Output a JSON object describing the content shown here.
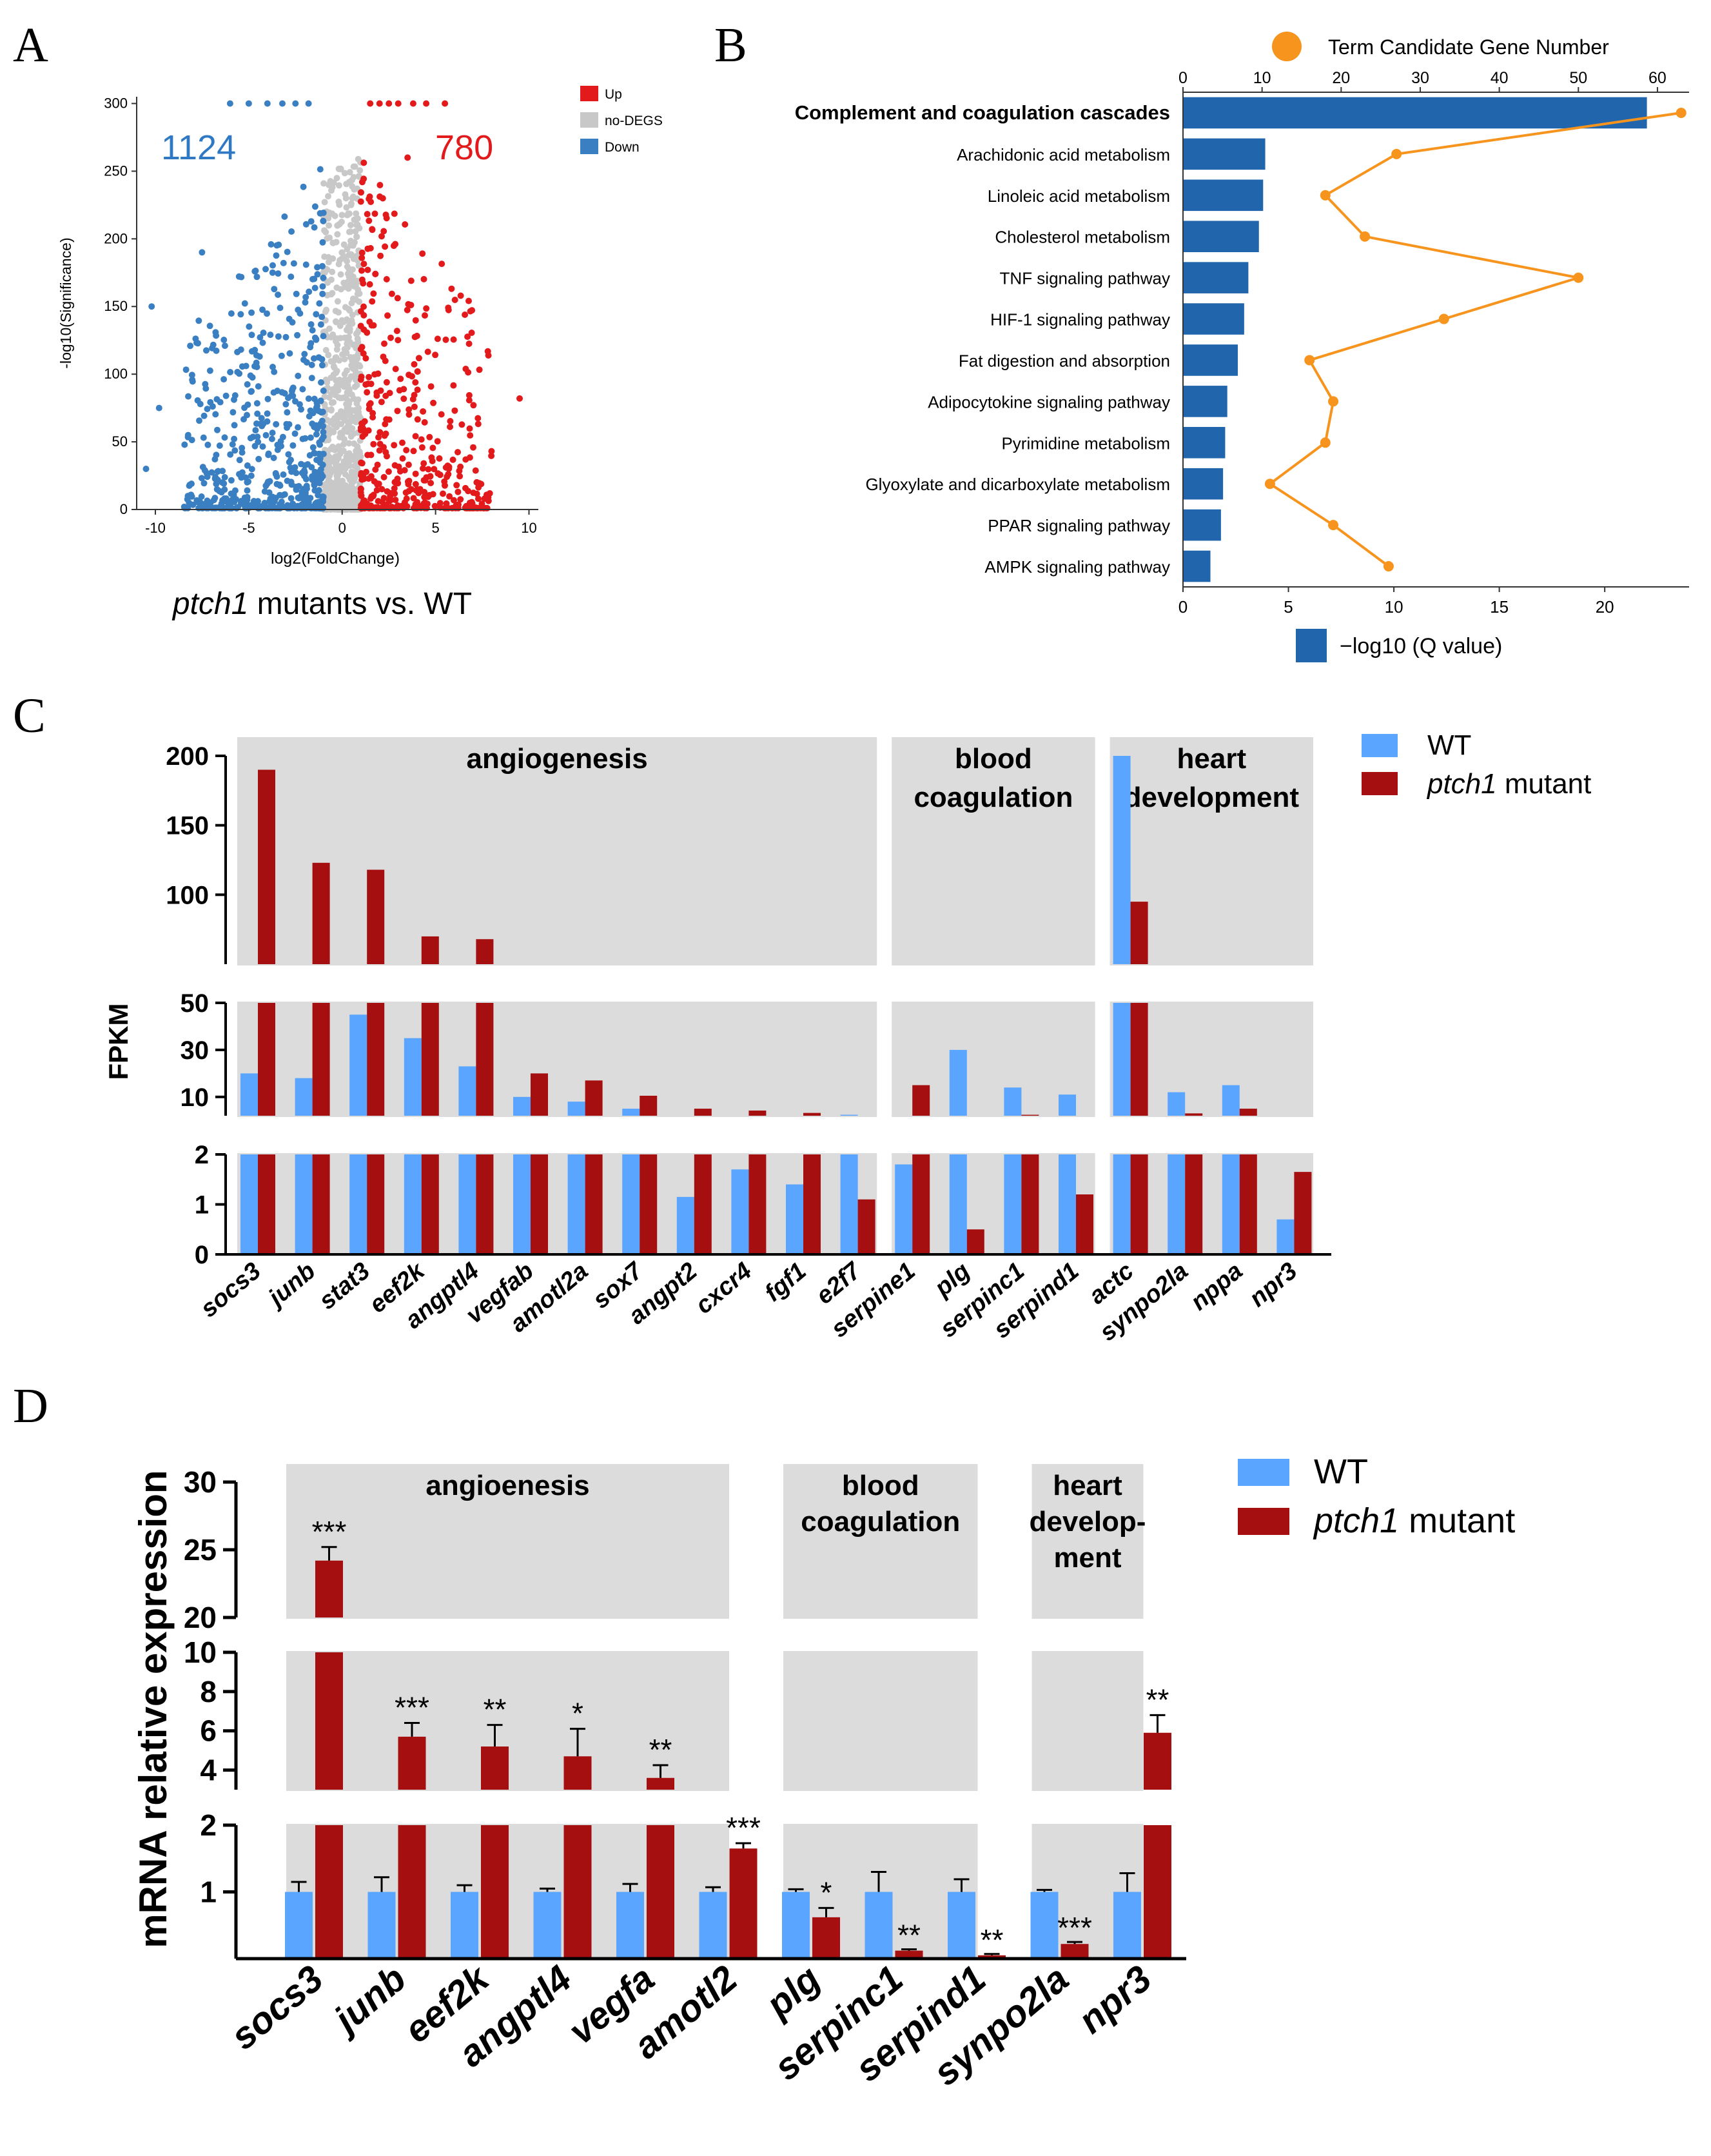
{
  "colors": {
    "up": "#e31a1c",
    "down": "#3a7fc1",
    "nodeg": "#c8c8c8",
    "kegg_bar": "#2166ac",
    "kegg_line": "#f7941d",
    "wt": "#5aa5ff",
    "mut": "#a50f0f",
    "panel_bg": "#dcdcdc"
  },
  "panel_labels": [
    "A",
    "B",
    "C",
    "D"
  ],
  "chart_data": [
    {
      "id": "A",
      "type": "scatter",
      "title": "",
      "xlabel": "log2(FoldChange)",
      "ylabel": "-log10(Significance)",
      "xlim": [
        -11,
        10.5
      ],
      "ylim": [
        0,
        305
      ],
      "xticks": [
        -10,
        -5,
        0,
        5,
        10
      ],
      "yticks": [
        0,
        50,
        100,
        150,
        200,
        250,
        300
      ],
      "legend": [
        "Up",
        "no-DEGS",
        "Down"
      ],
      "down_count": "1124",
      "up_count": "780",
      "caption_italic": "ptch1",
      "caption_rest": " mutants vs. WT",
      "points_note": "volcano plot: ~1124 down-regulated (blue, x<-1), ~780 up-regulated (red, x>1), non-DEGs grey near x=0"
    },
    {
      "id": "B",
      "type": "bar",
      "legend_top": "Term Candidate Gene Number",
      "legend_bottom": "−log10 (Q  value)",
      "categories": [
        "Complement and coagulation cascades",
        "Arachidonic acid metabolism",
        "Linoleic acid metabolism",
        "Cholesterol metabolism",
        "TNF signaling pathway",
        "HIF-1 signaling pathway",
        "Fat digestion and absorption",
        "Adipocytokine signaling pathway",
        "Pyrimidine metabolism",
        "Glyoxylate and dicarboxylate metabolism",
        "PPAR signaling pathway",
        "AMPK signaling pathway"
      ],
      "bar_values": [
        22,
        3.9,
        3.8,
        3.6,
        3.1,
        2.9,
        2.6,
        2.1,
        2.0,
        1.9,
        1.8,
        1.3
      ],
      "gene_numbers": [
        63,
        27,
        18,
        23,
        50,
        33,
        16,
        19,
        18,
        11,
        19,
        26
      ],
      "bottom_axis": {
        "ticks": [
          0,
          5,
          10,
          15,
          20
        ],
        "lim": [
          0,
          24
        ]
      },
      "top_axis": {
        "ticks": [
          0,
          10,
          20,
          30,
          40,
          50,
          60
        ],
        "lim": [
          0,
          64
        ]
      }
    },
    {
      "id": "C",
      "type": "bar",
      "ylabel": "FPKM",
      "series_names": [
        "WT",
        "ptch1"
      ],
      "series_suffix": " mutant",
      "groups": [
        {
          "label": "angiogenesis",
          "start": 0,
          "end": 11
        },
        {
          "label": "blood\ncoagulation",
          "start": 12,
          "end": 15
        },
        {
          "label": "heart\ndevelopment",
          "start": 16,
          "end": 19
        }
      ],
      "categories": [
        "socs3",
        "junb",
        "stat3",
        "eef2k",
        "angptl4",
        "vegfab",
        "amotl2a",
        "sox7",
        "angpt2",
        "cxcr4",
        "fgf1",
        "e2f7",
        "serpine1",
        "plg",
        "serpinc1",
        "serpind1",
        "actc",
        "synpo2la",
        "nppa",
        "npr3"
      ],
      "series": [
        {
          "name": "WT",
          "values": [
            20,
            18,
            45,
            35,
            23,
            10,
            8,
            5,
            1.15,
            1.7,
            1.4,
            2.4,
            1.8,
            30,
            14,
            11,
            200,
            12,
            15,
            0.7
          ]
        },
        {
          "name": "ptch1 mutant",
          "values": [
            190,
            123,
            118,
            70,
            68,
            20,
            17,
            10.5,
            5,
            4.2,
            3.2,
            1.1,
            15,
            0.5,
            2.4,
            1.2,
            95,
            3,
            5,
            1.65
          ]
        }
      ],
      "yticks": [
        0,
        1,
        2,
        10,
        30,
        50,
        100,
        150,
        200
      ]
    },
    {
      "id": "D",
      "type": "bar",
      "ylabel": "mRNA relative expression",
      "series_names": [
        "WT",
        "ptch1"
      ],
      "series_suffix": " mutant",
      "groups": [
        {
          "label": "angioenesis",
          "start": 0,
          "end": 5
        },
        {
          "label": "blood\ncoagulation",
          "start": 6,
          "end": 8
        },
        {
          "label": "heart\ndevelop-\nment",
          "start": 9,
          "end": 10
        }
      ],
      "categories": [
        "socs3",
        "junb",
        "eef2k",
        "angptl4",
        "vegfa",
        "amotl2",
        "plg",
        "serpinc1",
        "serpind1",
        "synpo2la",
        "npr3"
      ],
      "series": [
        {
          "name": "WT",
          "values": [
            1,
            1,
            1,
            1,
            1,
            1,
            1,
            1,
            1,
            1,
            1
          ],
          "errors": [
            0.15,
            0.22,
            0.1,
            0.05,
            0.12,
            0.07,
            0.04,
            0.3,
            0.19,
            0.03,
            0.28
          ]
        },
        {
          "name": "ptch1 mutant",
          "values": [
            24.2,
            5.7,
            5.2,
            4.7,
            3.6,
            1.65,
            0.62,
            0.12,
            0.05,
            0.22,
            5.9
          ],
          "errors": [
            1.0,
            0.7,
            1.1,
            1.4,
            0.65,
            0.08,
            0.14,
            0.02,
            0.02,
            0.03,
            0.9
          ]
        }
      ],
      "significance": [
        "***",
        "***",
        "**",
        "*",
        "**",
        "***",
        "*",
        "**",
        "**",
        "***",
        "**"
      ],
      "yticks": [
        1,
        2,
        4,
        6,
        8,
        10,
        20,
        25,
        30
      ]
    }
  ]
}
